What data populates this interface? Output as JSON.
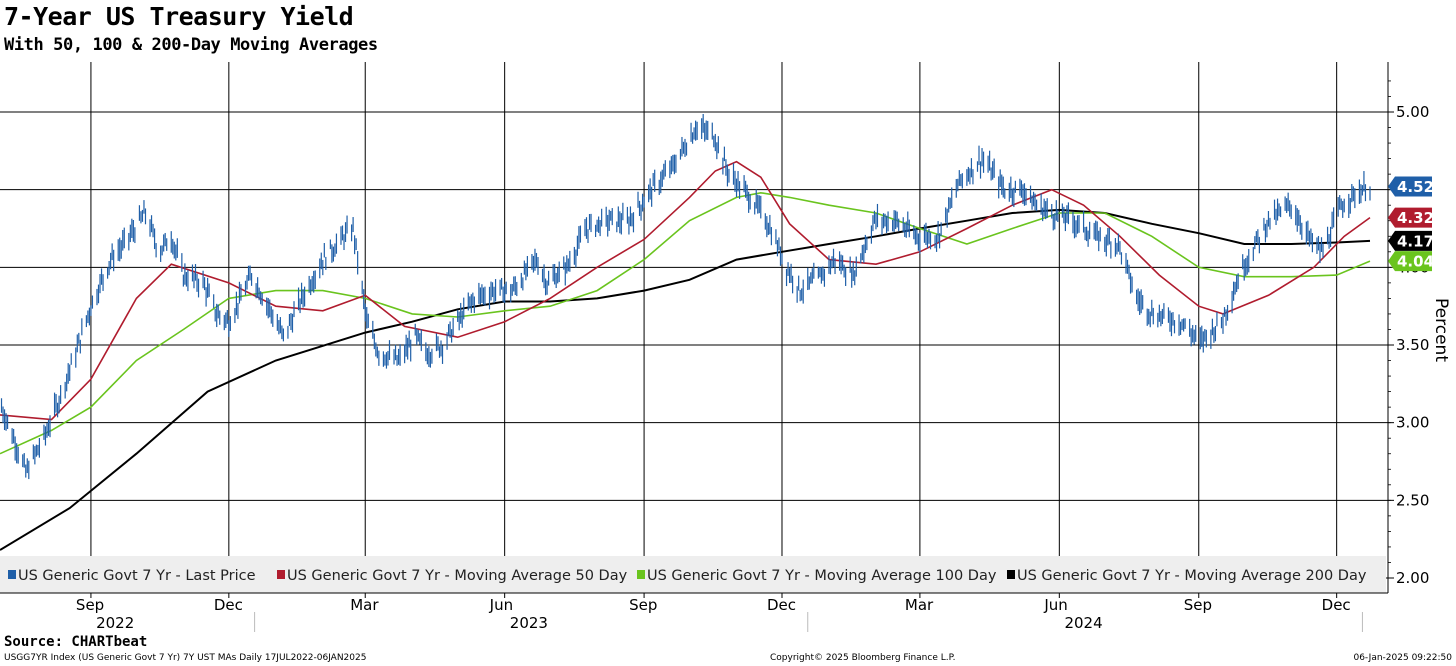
{
  "chart_data": {
    "type": "line",
    "title": "7-Year US Treasury Yield",
    "subtitle": "With 50, 100 & 200-Day Moving Averages",
    "ylabel": "Percent",
    "ylim": [
      2.0,
      5.25
    ],
    "y_ticks": [
      "5.00",
      "4.50",
      "4.00",
      "3.50",
      "3.00",
      "2.50",
      "2.00"
    ],
    "y_tick_values": [
      5.0,
      4.5,
      4.0,
      3.5,
      3.0,
      2.5,
      2.0
    ],
    "x_start": "2022-07-17",
    "x_end": "2025-01-06",
    "months": [
      "Sep",
      "Dec",
      "Mar",
      "Jun",
      "Sep",
      "Dec",
      "Mar",
      "Jun",
      "Sep",
      "Dec"
    ],
    "month_dates": [
      "2022-09-15",
      "2022-12-15",
      "2023-03-15",
      "2023-06-15",
      "2023-09-15",
      "2023-12-15",
      "2024-03-15",
      "2024-06-15",
      "2024-09-15",
      "2024-12-15"
    ],
    "years": [
      "2022",
      "2023",
      "2024"
    ],
    "year_dates": [
      "2022-10-01",
      "2023-07-01",
      "2024-07-01"
    ],
    "year_boundaries": [
      "2023-01-01",
      "2024-01-01",
      "2025-01-01"
    ],
    "grid": true,
    "legend_position": "bottom",
    "series": [
      {
        "name": "US Generic Govt 7 Yr - Last Price",
        "style": "ohlc",
        "color": "#1f5fa8",
        "dates": [
          "2022-07-18",
          "2022-07-28",
          "2022-08-03",
          "2022-08-15",
          "2022-08-25",
          "2022-09-05",
          "2022-09-15",
          "2022-09-28",
          "2022-10-07",
          "2022-10-21",
          "2022-10-30",
          "2022-11-07",
          "2022-11-15",
          "2022-11-28",
          "2022-12-07",
          "2022-12-15",
          "2022-12-30",
          "2023-01-10",
          "2023-01-20",
          "2023-02-01",
          "2023-02-15",
          "2023-03-01",
          "2023-03-07",
          "2023-03-16",
          "2023-03-24",
          "2023-04-06",
          "2023-04-17",
          "2023-04-25",
          "2023-05-05",
          "2023-05-15",
          "2023-05-26",
          "2023-06-07",
          "2023-06-20",
          "2023-07-06",
          "2023-07-13",
          "2023-07-26",
          "2023-08-08",
          "2023-08-22",
          "2023-09-05",
          "2023-09-20",
          "2023-10-04",
          "2023-10-19",
          "2023-10-31",
          "2023-11-10",
          "2023-11-24",
          "2023-12-05",
          "2023-12-18",
          "2023-12-27",
          "2024-01-10",
          "2024-01-19",
          "2024-01-31",
          "2024-02-14",
          "2024-02-28",
          "2024-03-12",
          "2024-03-27",
          "2024-04-10",
          "2024-04-25",
          "2024-05-10",
          "2024-05-22",
          "2024-05-31",
          "2024-06-10",
          "2024-06-24",
          "2024-07-09",
          "2024-07-24",
          "2024-08-05",
          "2024-08-16",
          "2024-09-03",
          "2024-09-16",
          "2024-09-30",
          "2024-10-14",
          "2024-10-31",
          "2024-11-15",
          "2024-11-29",
          "2024-12-06",
          "2024-12-18",
          "2024-12-31",
          "2025-01-06"
        ],
        "values": [
          3.1,
          2.85,
          2.68,
          2.9,
          3.15,
          3.45,
          3.75,
          4.05,
          4.15,
          4.35,
          4.1,
          4.2,
          3.95,
          3.9,
          3.7,
          3.65,
          3.95,
          3.75,
          3.55,
          3.8,
          4.05,
          4.2,
          4.25,
          3.65,
          3.45,
          3.4,
          3.55,
          3.45,
          3.5,
          3.65,
          3.8,
          3.85,
          3.85,
          4.05,
          3.9,
          4.0,
          4.25,
          4.3,
          4.3,
          4.5,
          4.65,
          4.9,
          4.85,
          4.6,
          4.45,
          4.3,
          4.0,
          3.85,
          3.95,
          4.05,
          3.95,
          4.3,
          4.3,
          4.2,
          4.2,
          4.55,
          4.7,
          4.5,
          4.5,
          4.4,
          4.35,
          4.3,
          4.2,
          4.15,
          3.8,
          3.7,
          3.65,
          3.52,
          3.65,
          4.0,
          4.3,
          4.4,
          4.15,
          4.1,
          4.4,
          4.5,
          4.52
        ]
      },
      {
        "name": "US Generic Govt 7 Yr - Moving Average 50 Day",
        "style": "line",
        "color": "#b01c2e",
        "dates": [
          "2022-07-17",
          "2022-08-20",
          "2022-09-15",
          "2022-10-15",
          "2022-11-07",
          "2022-12-15",
          "2023-01-15",
          "2023-02-15",
          "2023-03-15",
          "2023-04-10",
          "2023-05-15",
          "2023-06-15",
          "2023-07-15",
          "2023-08-15",
          "2023-09-15",
          "2023-10-15",
          "2023-11-01",
          "2023-11-15",
          "2023-12-01",
          "2023-12-20",
          "2024-01-15",
          "2024-02-15",
          "2024-03-15",
          "2024-04-15",
          "2024-05-15",
          "2024-06-10",
          "2024-07-01",
          "2024-07-25",
          "2024-08-20",
          "2024-09-15",
          "2024-10-01",
          "2024-10-31",
          "2024-11-30",
          "2024-12-20",
          "2025-01-06"
        ],
        "values": [
          3.05,
          3.02,
          3.28,
          3.8,
          4.02,
          3.9,
          3.75,
          3.72,
          3.82,
          3.62,
          3.55,
          3.65,
          3.8,
          4.0,
          4.18,
          4.45,
          4.62,
          4.68,
          4.58,
          4.28,
          4.05,
          4.02,
          4.1,
          4.25,
          4.4,
          4.5,
          4.4,
          4.2,
          3.95,
          3.75,
          3.7,
          3.82,
          4.0,
          4.2,
          4.32
        ]
      },
      {
        "name": "US Generic Govt 7 Yr - Moving Average 100 Day",
        "style": "line",
        "color": "#6ac41e",
        "dates": [
          "2022-07-17",
          "2022-08-20",
          "2022-09-15",
          "2022-10-15",
          "2022-11-15",
          "2022-12-15",
          "2023-01-15",
          "2023-02-15",
          "2023-03-15",
          "2023-04-15",
          "2023-05-15",
          "2023-06-15",
          "2023-07-15",
          "2023-08-15",
          "2023-09-15",
          "2023-10-15",
          "2023-11-15",
          "2023-12-01",
          "2023-12-20",
          "2024-01-15",
          "2024-02-15",
          "2024-03-15",
          "2024-04-15",
          "2024-05-15",
          "2024-06-15",
          "2024-07-15",
          "2024-08-15",
          "2024-09-15",
          "2024-10-15",
          "2024-11-15",
          "2024-12-15",
          "2025-01-06"
        ],
        "values": [
          2.8,
          2.95,
          3.1,
          3.4,
          3.6,
          3.8,
          3.85,
          3.85,
          3.8,
          3.7,
          3.68,
          3.72,
          3.75,
          3.85,
          4.05,
          4.3,
          4.45,
          4.48,
          4.45,
          4.4,
          4.35,
          4.25,
          4.15,
          4.25,
          4.35,
          4.35,
          4.2,
          4.0,
          3.94,
          3.94,
          3.95,
          4.04
        ]
      },
      {
        "name": "US Generic Govt 7 Yr - Moving Average 200 Day",
        "style": "line",
        "color": "#000000",
        "dates": [
          "2022-07-17",
          "2022-09-01",
          "2022-10-15",
          "2022-12-01",
          "2023-01-15",
          "2023-03-15",
          "2023-04-15",
          "2023-05-15",
          "2023-06-15",
          "2023-07-15",
          "2023-08-15",
          "2023-09-15",
          "2023-10-15",
          "2023-11-15",
          "2023-12-15",
          "2024-01-15",
          "2024-02-15",
          "2024-03-15",
          "2024-04-15",
          "2024-05-15",
          "2024-06-15",
          "2024-07-15",
          "2024-08-15",
          "2024-09-15",
          "2024-10-15",
          "2024-11-15",
          "2024-12-15",
          "2025-01-06"
        ],
        "values": [
          2.18,
          2.45,
          2.8,
          3.2,
          3.4,
          3.58,
          3.65,
          3.73,
          3.78,
          3.78,
          3.8,
          3.85,
          3.92,
          4.05,
          4.1,
          4.15,
          4.2,
          4.25,
          4.3,
          4.35,
          4.37,
          4.35,
          4.28,
          4.22,
          4.15,
          4.15,
          4.16,
          4.17
        ]
      }
    ],
    "last_values": [
      {
        "label": "4.52",
        "value": 4.52,
        "color": "#1f5fa8"
      },
      {
        "label": "4.32",
        "value": 4.32,
        "color": "#b01c2e"
      },
      {
        "label": "4.17",
        "value": 4.17,
        "color": "#000000"
      },
      {
        "label": "4.04",
        "value": 4.04,
        "color": "#6ac41e"
      }
    ]
  },
  "footer": {
    "source": "Source: CHARTbeat",
    "index_info": "USGG7YR Index (US Generic Govt 7 Yr) 7Y UST MAs  Daily 17JUL2022-06JAN2025",
    "copyright": "Copyright© 2025 Bloomberg Finance L.P.",
    "timestamp": "06-Jan-2025 09:22:50"
  }
}
